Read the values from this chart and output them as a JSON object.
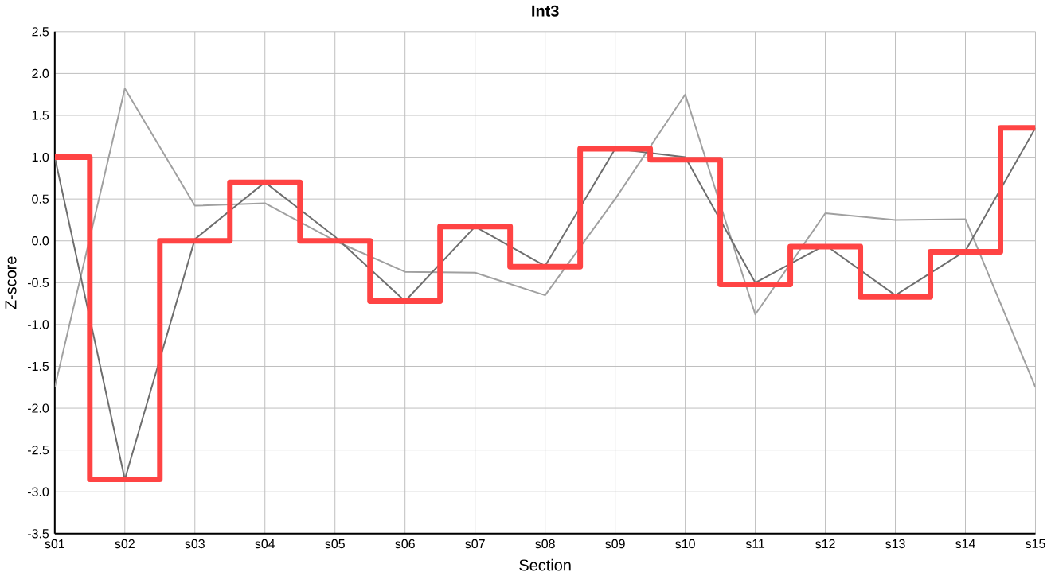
{
  "chart_data": {
    "type": "line",
    "title": "Int3",
    "xlabel": "Section",
    "ylabel": "Z-score",
    "categories": [
      "s01",
      "s02",
      "s03",
      "s04",
      "s05",
      "s06",
      "s07",
      "s08",
      "s09",
      "s10",
      "s11",
      "s12",
      "s13",
      "s14",
      "s15"
    ],
    "series": [
      {
        "color": "#a0a0a0",
        "values": [
          -1.75,
          1.82,
          0.42,
          0.45,
          0.0,
          -0.37,
          -0.38,
          -0.65,
          0.5,
          1.75,
          -0.88,
          0.33,
          0.25,
          0.26,
          -1.75
        ]
      },
      {
        "color": "#6e6e6e",
        "values": [
          1.0,
          -2.85,
          0.02,
          0.7,
          0.05,
          -0.72,
          0.17,
          -0.3,
          1.1,
          1.0,
          -0.5,
          -0.05,
          -0.65,
          -0.12,
          1.35
        ]
      },
      {
        "type": "step",
        "color": "#ff4444",
        "values": [
          1.0,
          -2.85,
          0.0,
          0.7,
          0.0,
          -0.72,
          0.17,
          -0.31,
          1.1,
          0.97,
          -0.52,
          -0.07,
          -0.67,
          -0.13,
          1.35
        ]
      }
    ],
    "ylim": [
      -3.5,
      2.5
    ],
    "yticks": [
      {
        "value": -3.5,
        "label": "-3.5"
      },
      {
        "value": -3,
        "label": "-3.0"
      },
      {
        "value": -2.5,
        "label": "-2.5"
      },
      {
        "value": -2,
        "label": "-2.0"
      },
      {
        "value": -1.5,
        "label": "-1.5"
      },
      {
        "value": -1,
        "label": "-1.0"
      },
      {
        "value": -0.5,
        "label": "-0.5"
      },
      {
        "value": 0,
        "label": "0.0"
      },
      {
        "value": 0.5,
        "label": "0.5"
      },
      {
        "value": 1,
        "label": "1.0"
      },
      {
        "value": 1.5,
        "label": "1.5"
      },
      {
        "value": 2,
        "label": "2.0"
      },
      {
        "value": 2.5,
        "label": "2.5"
      }
    ],
    "grid": true,
    "marker": "none",
    "line_style": "solid"
  }
}
